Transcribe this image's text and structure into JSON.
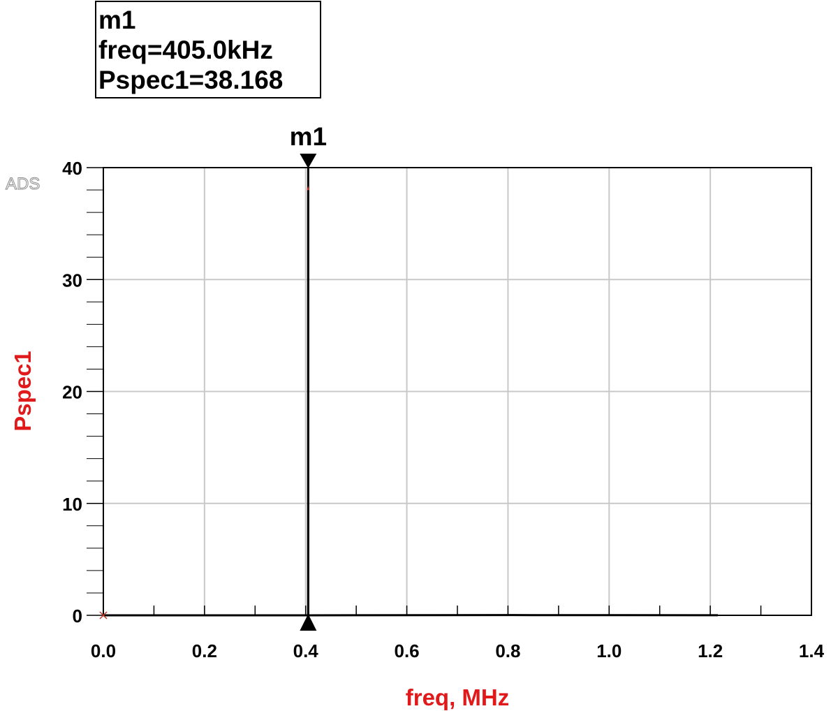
{
  "marker_readout": {
    "name": "m1",
    "line1": "freq=405.0kHz",
    "line2": "Pspec1=38.168"
  },
  "watermark": "ADS",
  "colors": {
    "axis_label": "#e0191b",
    "trace": "#000000",
    "grid": "#c8c8c8",
    "trace_end_marks": "#c0392b"
  },
  "chart_data": {
    "type": "line",
    "title": "",
    "xlabel": "freq, MHz",
    "ylabel": "Pspec1",
    "xlim": [
      0,
      1.4
    ],
    "ylim": [
      0,
      40
    ],
    "x_ticks": [
      "0.0",
      "0.2",
      "0.4",
      "0.6",
      "0.8",
      "1.0",
      "1.2",
      "1.4"
    ],
    "y_ticks": [
      "0",
      "10",
      "20",
      "30",
      "40"
    ],
    "grid": true,
    "series": [
      {
        "x": [
          0.0,
          0.405,
          0.405,
          0.405,
          0.81,
          1.215
        ],
        "y": [
          0.0,
          0.0,
          38.168,
          0.0,
          0.02,
          0.01
        ]
      }
    ],
    "markers": [
      {
        "name": "m1",
        "x": 0.405,
        "y": 38.168
      }
    ]
  }
}
